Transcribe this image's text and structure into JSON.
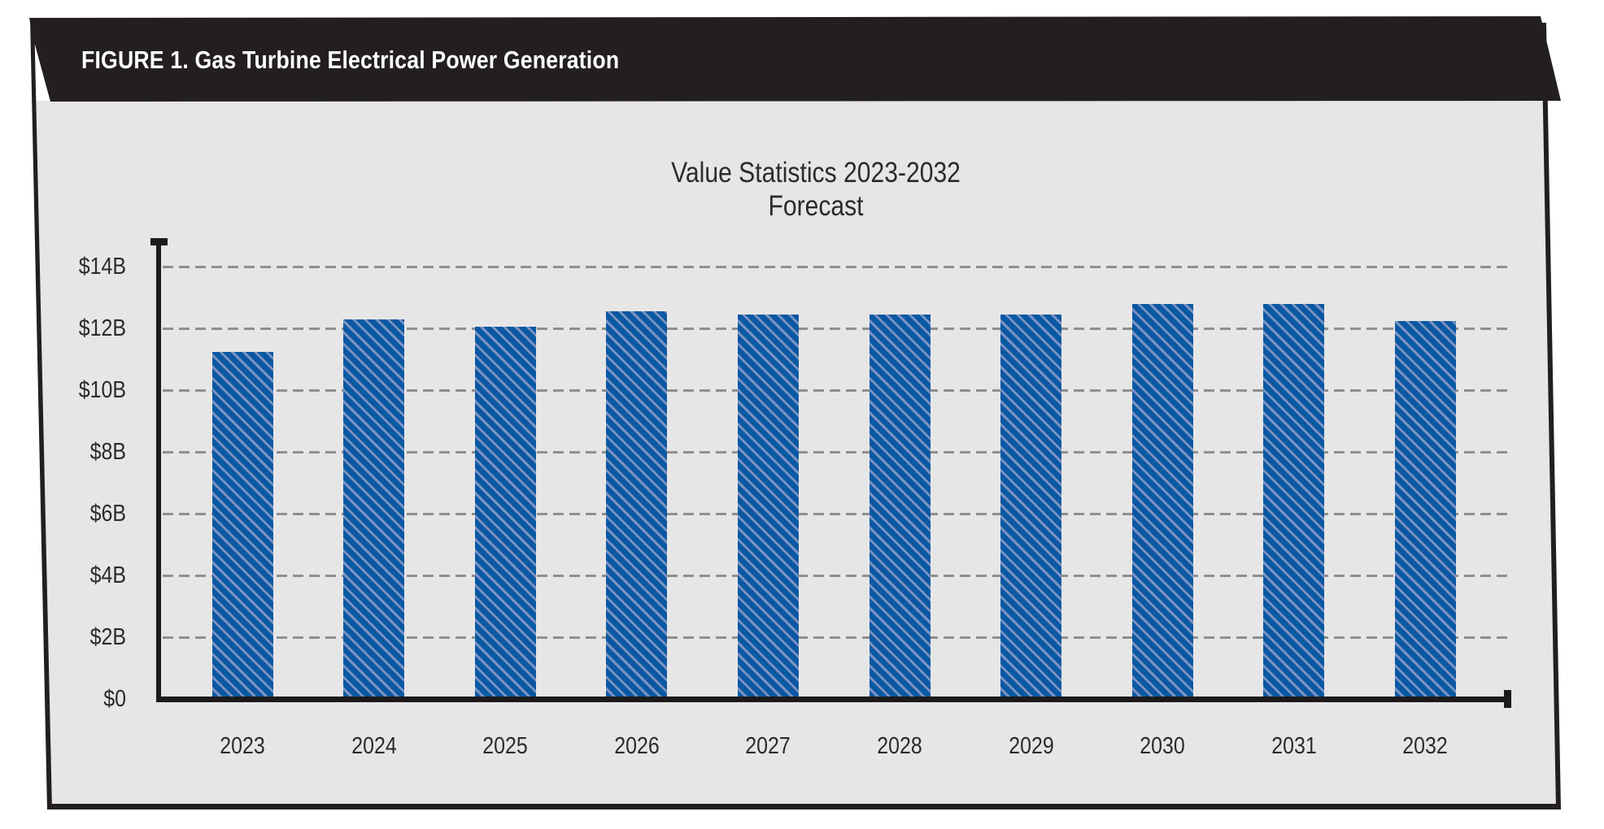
{
  "banner": {
    "title": "FIGURE 1. Gas Turbine Electrical Power Generation",
    "bg_color": "#231f20",
    "text_color": "#ffffff"
  },
  "chart_data": {
    "type": "bar",
    "title": "Value Statistics 2023-2032",
    "subtitle": "Forecast",
    "categories": [
      "2023",
      "2024",
      "2025",
      "2026",
      "2027",
      "2028",
      "2029",
      "2030",
      "2031",
      "2032"
    ],
    "values": [
      11.25,
      12.3,
      12.05,
      12.55,
      12.45,
      12.45,
      12.45,
      12.8,
      12.8,
      12.25
    ],
    "values_unit": "$B",
    "y_ticks": [
      {
        "label": "$14B",
        "value": 14
      },
      {
        "label": "$12B",
        "value": 12
      },
      {
        "label": "$10B",
        "value": 10
      },
      {
        "label": "$8B",
        "value": 8
      },
      {
        "label": "$6B",
        "value": 6
      },
      {
        "label": "$4B",
        "value": 4
      },
      {
        "label": "$2B",
        "value": 2
      },
      {
        "label": "$0",
        "value": 0
      }
    ],
    "ylim": [
      0,
      15.2
    ],
    "grid": {
      "axis": "y",
      "style": "dashed"
    },
    "legend": "none",
    "bar_hatch_style": "diagonal-stripes",
    "colors": {
      "bar_fill": "#0a58a4",
      "bar_hatch": "#7b93c2",
      "gridline": "#8f8f8f",
      "axis": "#1d1a1b",
      "panel_bg": "#e6e6e6",
      "text": "#2d2a2b"
    }
  }
}
